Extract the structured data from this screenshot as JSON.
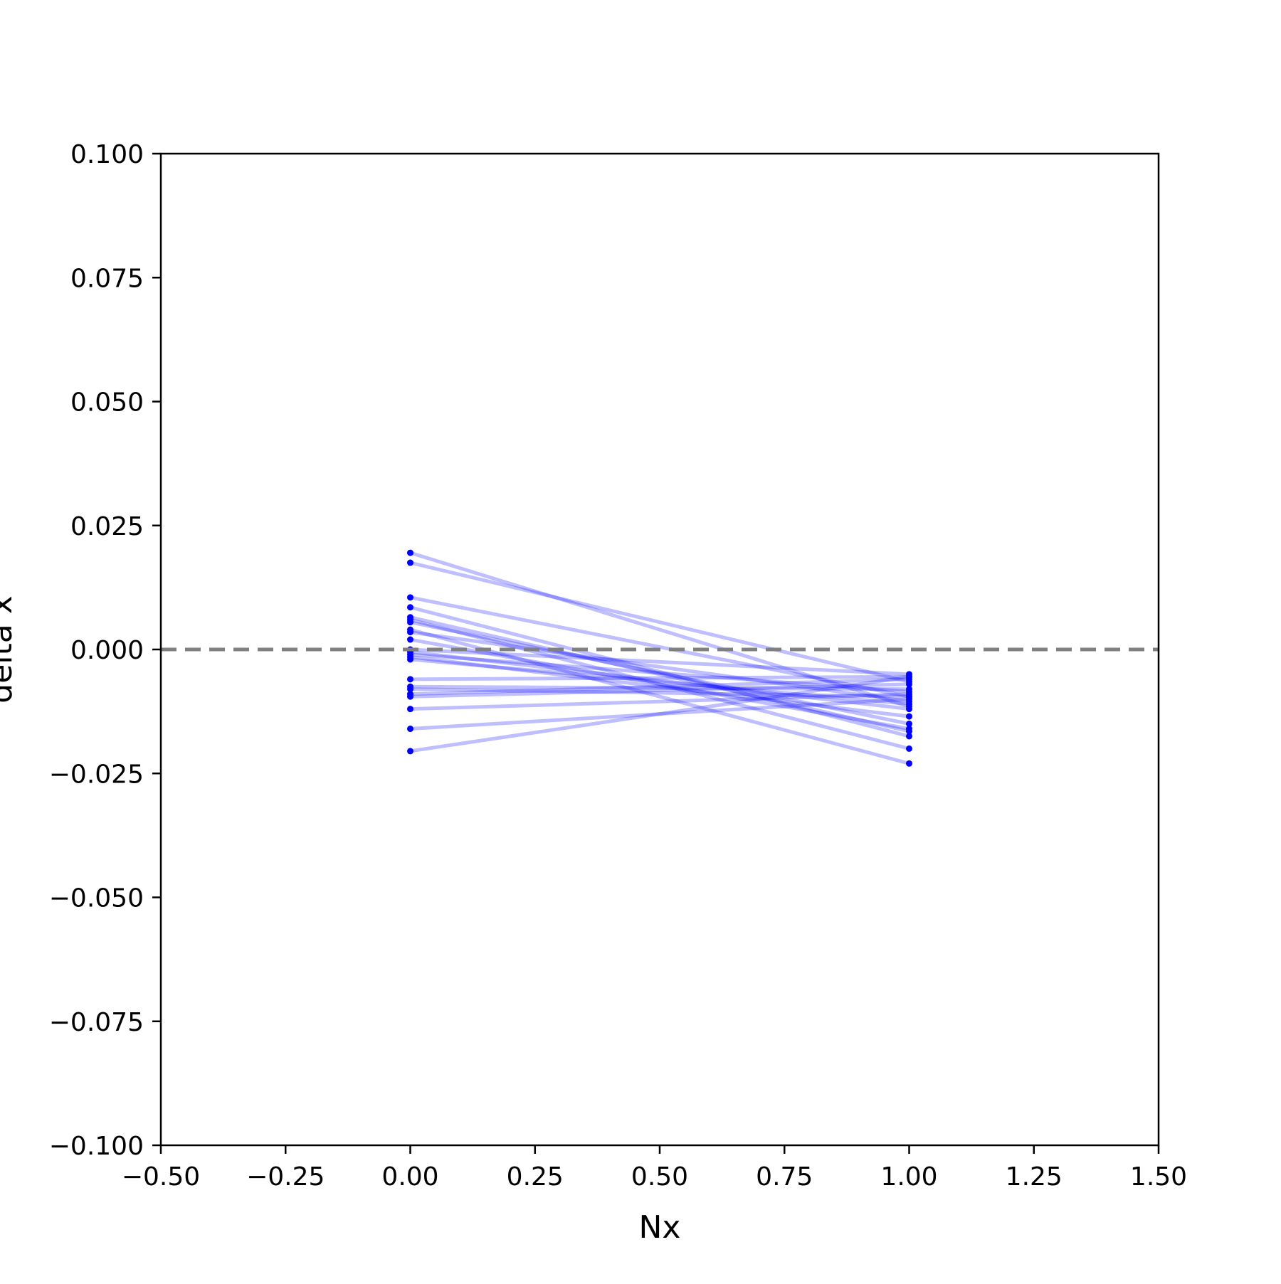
{
  "chart_data": {
    "type": "line",
    "title": "",
    "xlabel": "Nx",
    "ylabel": "delta x",
    "xlim": [
      -0.5,
      1.5
    ],
    "ylim": [
      -0.1,
      0.1
    ],
    "x_ticks": [
      -0.5,
      -0.25,
      0.0,
      0.25,
      0.5,
      0.75,
      1.0,
      1.25,
      1.5
    ],
    "x_tick_labels": [
      "−0.50",
      "−0.25",
      "0.00",
      "0.25",
      "0.50",
      "0.75",
      "1.00",
      "1.25",
      "1.50"
    ],
    "y_ticks": [
      0.1,
      0.075,
      0.05,
      0.025,
      0.0,
      -0.025,
      -0.05,
      -0.075,
      -0.1
    ],
    "y_tick_labels": [
      "0.100",
      "0.075",
      "0.050",
      "0.025",
      "0.000",
      "−0.025",
      "−0.050",
      "−0.075",
      "−0.100"
    ],
    "reference_line": {
      "y": 0.0,
      "style": "dashed",
      "color": "#808080"
    },
    "line_color": "#0000ff",
    "line_alpha": 0.25,
    "marker_color": "#0000ff",
    "grid": false,
    "legend": "none",
    "x": [
      0,
      1
    ],
    "series": [
      {
        "values": [
          0.0195,
          -0.0115
        ]
      },
      {
        "values": [
          0.0175,
          -0.0065
        ]
      },
      {
        "values": [
          0.0105,
          -0.0095
        ]
      },
      {
        "values": [
          0.0085,
          -0.0175
        ]
      },
      {
        "values": [
          0.0065,
          -0.0165
        ]
      },
      {
        "values": [
          0.006,
          -0.02
        ]
      },
      {
        "values": [
          0.0055,
          -0.015
        ]
      },
      {
        "values": [
          0.004,
          -0.023
        ]
      },
      {
        "values": [
          0.0035,
          -0.0105
        ]
      },
      {
        "values": [
          0.002,
          -0.016
        ]
      },
      {
        "values": [
          0.0,
          -0.005
        ]
      },
      {
        "values": [
          -0.0005,
          -0.012
        ]
      },
      {
        "values": [
          -0.001,
          -0.0085
        ]
      },
      {
        "values": [
          -0.0015,
          -0.0135
        ]
      },
      {
        "values": [
          -0.002,
          -0.011
        ]
      },
      {
        "values": [
          -0.006,
          -0.0055
        ]
      },
      {
        "values": [
          -0.0075,
          -0.008
        ]
      },
      {
        "values": [
          -0.008,
          -0.0095
        ]
      },
      {
        "values": [
          -0.009,
          -0.006
        ]
      },
      {
        "values": [
          -0.0095,
          -0.007
        ]
      },
      {
        "values": [
          -0.012,
          -0.009
        ]
      },
      {
        "values": [
          -0.016,
          -0.01
        ]
      },
      {
        "values": [
          -0.0205,
          -0.0055
        ]
      }
    ]
  }
}
